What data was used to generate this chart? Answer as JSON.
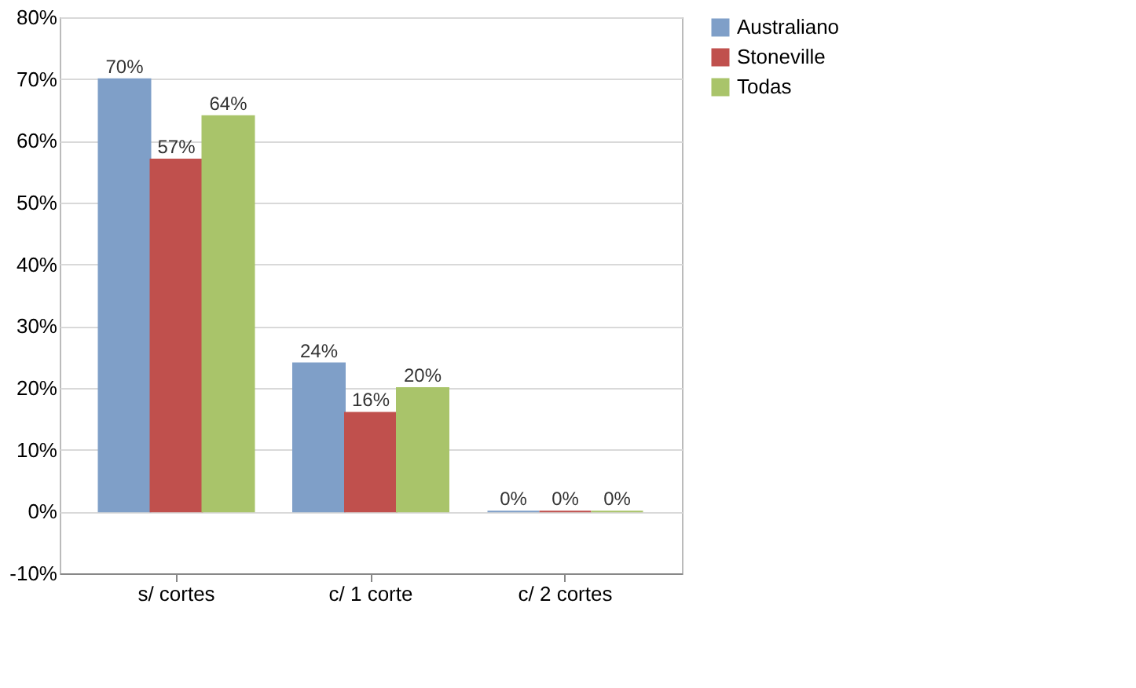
{
  "chart_data": {
    "type": "bar",
    "categories": [
      "s/ cortes",
      "c/ 1 corte",
      "c/ 2 cortes"
    ],
    "series": [
      {
        "name": "Australiano",
        "color": "#7f9fc8",
        "values": [
          70,
          24,
          0
        ],
        "value_labels": [
          "70%",
          "24%",
          "0%"
        ]
      },
      {
        "name": "Stoneville",
        "color": "#c0504d",
        "values": [
          57,
          16,
          0
        ],
        "value_labels": [
          "57%",
          "16%",
          "0%"
        ]
      },
      {
        "name": "Todas",
        "color": "#a9c46a",
        "values": [
          64,
          20,
          0
        ],
        "value_labels": [
          "64%",
          "20%",
          "0%"
        ]
      }
    ],
    "ylim": [
      -10,
      80
    ],
    "yticks": [
      {
        "value": -10,
        "label": "-10%"
      },
      {
        "value": 0,
        "label": "0%"
      },
      {
        "value": 10,
        "label": "10%"
      },
      {
        "value": 20,
        "label": "20%"
      },
      {
        "value": 30,
        "label": "30%"
      },
      {
        "value": 40,
        "label": "40%"
      },
      {
        "value": 50,
        "label": "50%"
      },
      {
        "value": 60,
        "label": "60%"
      },
      {
        "value": 70,
        "label": "70%"
      },
      {
        "value": 80,
        "label": "80%"
      }
    ],
    "grid": "y",
    "legend": "right"
  }
}
